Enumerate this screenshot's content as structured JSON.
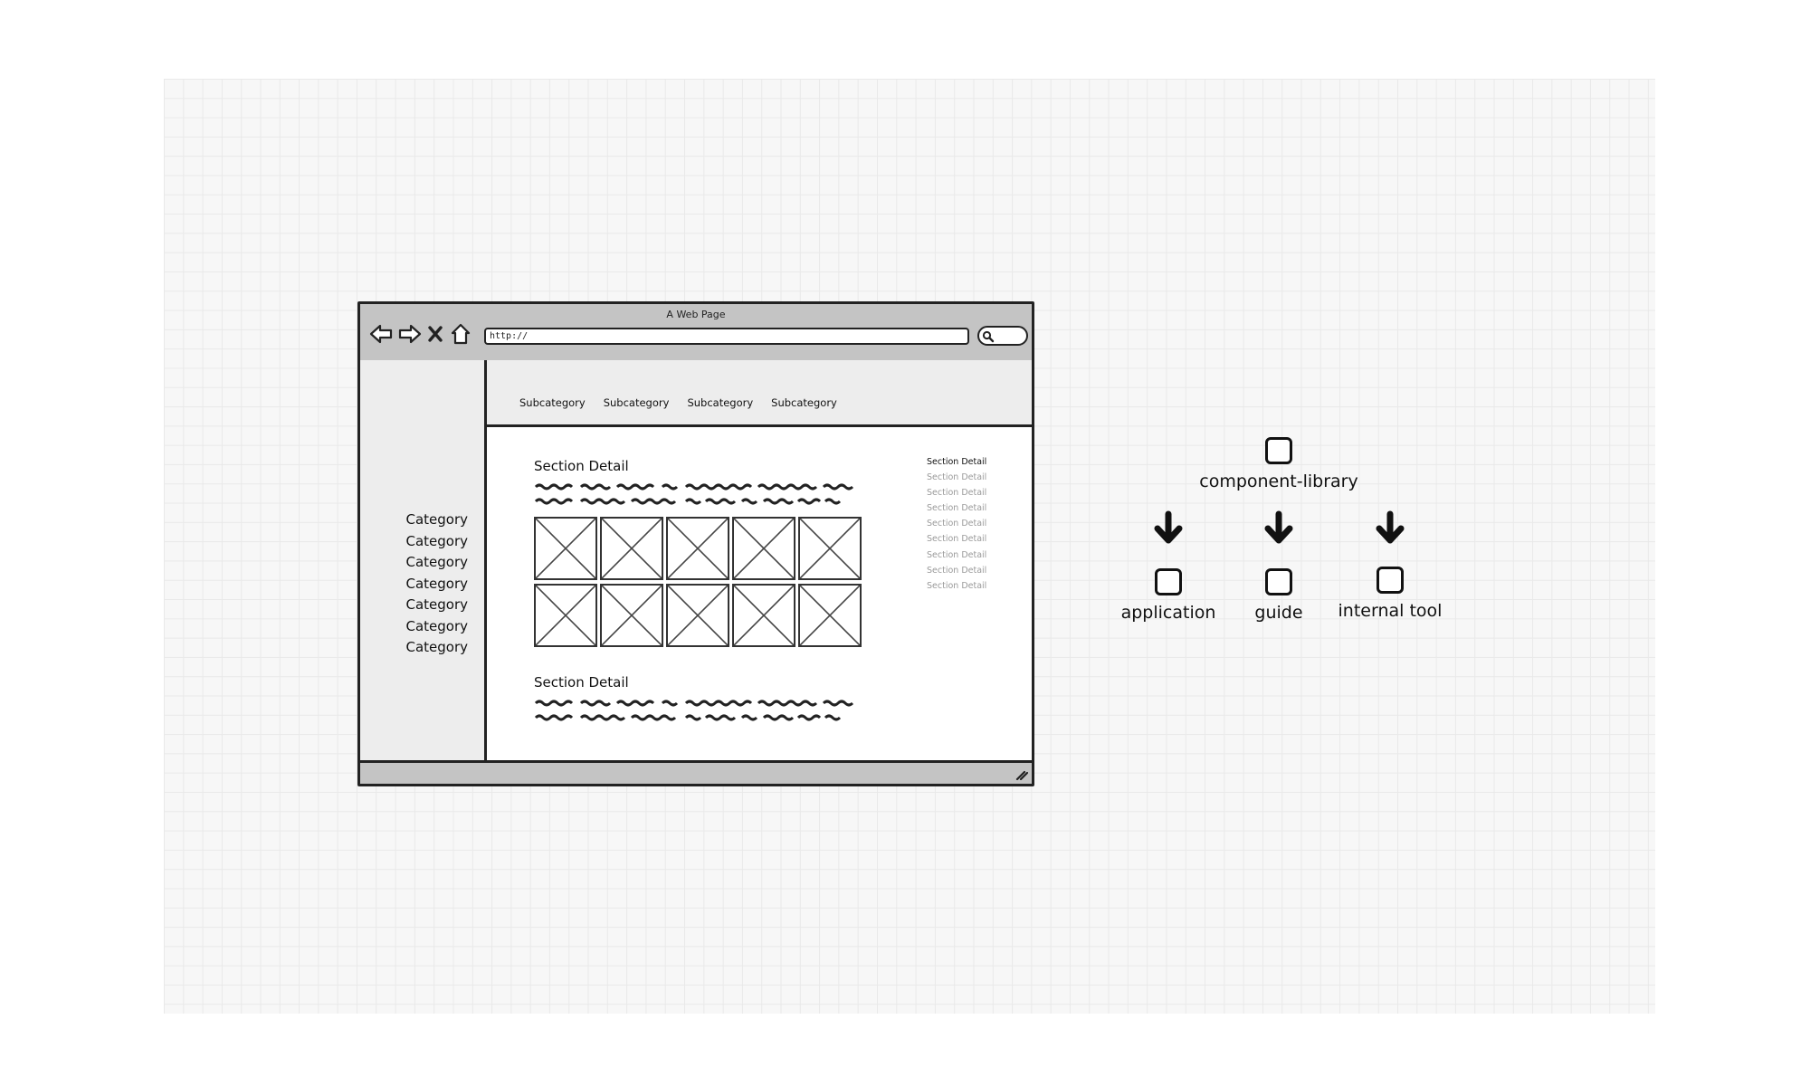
{
  "browser": {
    "title": "A Web Page",
    "url": "http://",
    "nav_icons": [
      "back-arrow-icon",
      "forward-arrow-icon",
      "close-x-icon",
      "home-icon"
    ],
    "search_icon": "search-icon"
  },
  "sidebar": {
    "categories": [
      "Category",
      "Category",
      "Category",
      "Category",
      "Category",
      "Category",
      "Category"
    ]
  },
  "subnav": {
    "items": [
      "Subcategory",
      "Subcategory",
      "Subcategory",
      "Subcategory"
    ]
  },
  "content": {
    "section1_title": "Section Detail",
    "section2_title": "Section Detail",
    "image_placeholder_count_label": "",
    "side_links": [
      "Section Detail",
      "Section Detail",
      "Section Detail",
      "Section Detail",
      "Section Detail",
      "Section Detail",
      "Section Detail",
      "Section Detail",
      "Section Detail"
    ]
  },
  "diagram": {
    "root": "component-library",
    "children": [
      "application",
      "guide",
      "internal tool"
    ]
  },
  "colors": {
    "chrome": "#c4c4c4",
    "panel": "#ededed",
    "ink": "#222222",
    "muted_link": "#9a9a9a"
  }
}
